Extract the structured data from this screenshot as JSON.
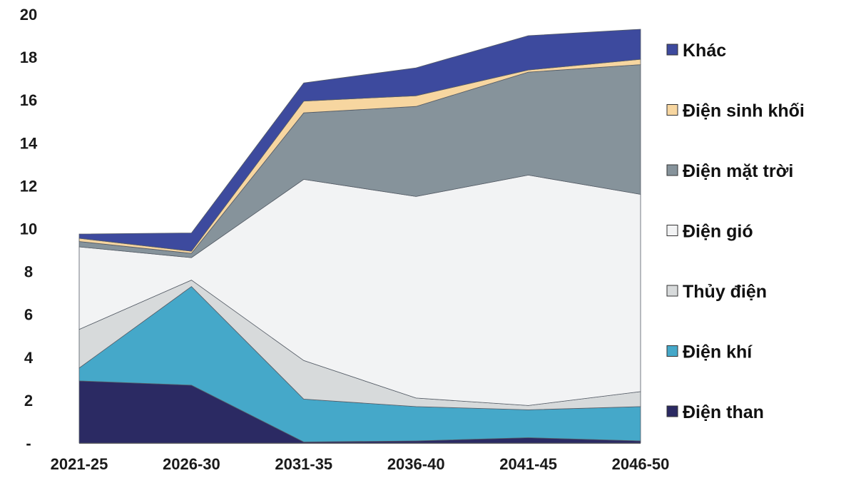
{
  "chart_data": {
    "type": "area",
    "stacked": true,
    "title": "",
    "xlabel": "",
    "ylabel": "",
    "ylim": [
      0,
      20
    ],
    "yticks": [
      0,
      2,
      4,
      6,
      8,
      10,
      12,
      14,
      16,
      18,
      20
    ],
    "yticklabels": [
      "-",
      "2",
      "4",
      "6",
      "8",
      "10",
      "12",
      "14",
      "16",
      "18",
      "20"
    ],
    "categories": [
      "2021-25",
      "2026-30",
      "2031-35",
      "2036-40",
      "2041-45",
      "2046-50"
    ],
    "grid": false,
    "legend_position": "right",
    "series": [
      {
        "name": "Điện than",
        "color": "#2b2a63",
        "values": [
          2.9,
          2.7,
          0.05,
          0.1,
          0.25,
          0.1
        ]
      },
      {
        "name": "Điện khí",
        "color": "#45a8c9",
        "values": [
          0.6,
          4.6,
          2.0,
          1.6,
          1.3,
          1.6
        ]
      },
      {
        "name": "Thủy điện",
        "color": "#d7dadb",
        "values": [
          1.8,
          0.3,
          1.8,
          0.4,
          0.2,
          0.7
        ]
      },
      {
        "name": "Điện gió",
        "color": "#f2f3f4",
        "values": [
          3.85,
          1.05,
          8.45,
          9.4,
          10.75,
          9.2
        ]
      },
      {
        "name": "Điện mặt trời",
        "color": "#86939b",
        "values": [
          0.25,
          0.2,
          3.1,
          4.2,
          4.8,
          6.05
        ]
      },
      {
        "name": "Điện sinh khối",
        "color": "#f7d6a0",
        "values": [
          0.15,
          0.1,
          0.55,
          0.5,
          0.1,
          0.25
        ]
      },
      {
        "name": "Khác",
        "color": "#3d4a9e",
        "values": [
          0.2,
          0.85,
          0.85,
          1.3,
          1.6,
          1.4
        ]
      }
    ]
  }
}
